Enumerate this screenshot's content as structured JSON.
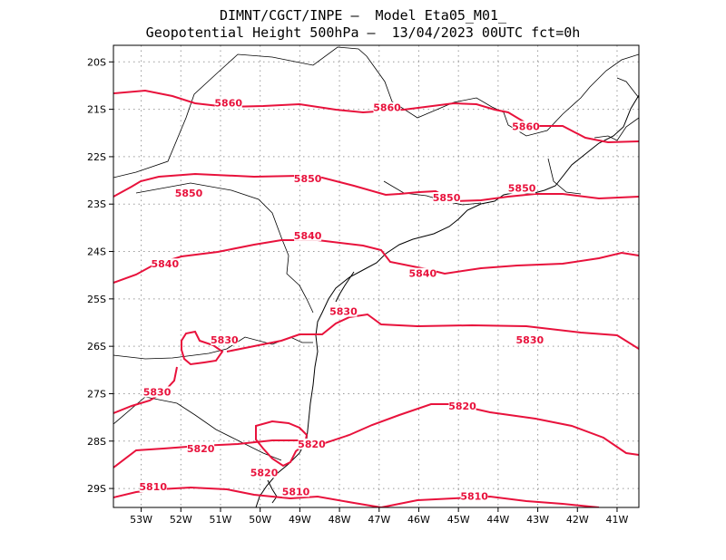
{
  "title_line1": "DIMNT/CGCT/INPE –  Model Eta05_M01_",
  "title_line2": "Geopotential Height 500hPa –  13/04/2023 00UTC fct=0h",
  "colors": {
    "contour": "#e8123c",
    "border": "#000000",
    "grid": "#999999"
  },
  "lat_ticks": [
    "20S",
    "21S",
    "22S",
    "23S",
    "24S",
    "25S",
    "26S",
    "27S",
    "28S",
    "29S"
  ],
  "lon_ticks": [
    "53W",
    "52W",
    "51W",
    "50W",
    "49W",
    "48W",
    "47W",
    "46W",
    "45W",
    "44W",
    "43W",
    "42W",
    "41W"
  ],
  "contours": [
    {
      "level": "5860",
      "labels": [
        {
          "lon": -50.8,
          "lat": -20.9
        },
        {
          "lon": -46.8,
          "lat": -21.0
        },
        {
          "lon": -43.3,
          "lat": -21.4
        }
      ]
    },
    {
      "level": "5850",
      "labels": [
        {
          "lon": -51.8,
          "lat": -22.8
        },
        {
          "lon": -48.8,
          "lat": -22.5
        },
        {
          "lon": -45.3,
          "lat": -22.9
        },
        {
          "lon": -43.4,
          "lat": -22.7
        }
      ]
    },
    {
      "level": "5840",
      "labels": [
        {
          "lon": -52.4,
          "lat": -24.3
        },
        {
          "lon": -48.8,
          "lat": -23.7
        },
        {
          "lon": -45.9,
          "lat": -24.5
        }
      ]
    },
    {
      "level": "5830",
      "labels": [
        {
          "lon": -50.9,
          "lat": -25.9
        },
        {
          "lon": -47.9,
          "lat": -25.3
        },
        {
          "lon": -43.2,
          "lat": -25.9
        },
        {
          "lon": -52.6,
          "lat": -27.0
        }
      ]
    },
    {
      "level": "5820",
      "labels": [
        {
          "lon": -44.9,
          "lat": -27.3
        },
        {
          "lon": -48.7,
          "lat": -28.1
        },
        {
          "lon": -51.5,
          "lat": -28.2
        },
        {
          "lon": -49.9,
          "lat": -28.7
        }
      ]
    },
    {
      "level": "5810",
      "labels": [
        {
          "lon": -52.7,
          "lat": -29.0
        },
        {
          "lon": -49.1,
          "lat": -29.1
        },
        {
          "lon": -44.6,
          "lat": -29.2
        }
      ]
    }
  ]
}
